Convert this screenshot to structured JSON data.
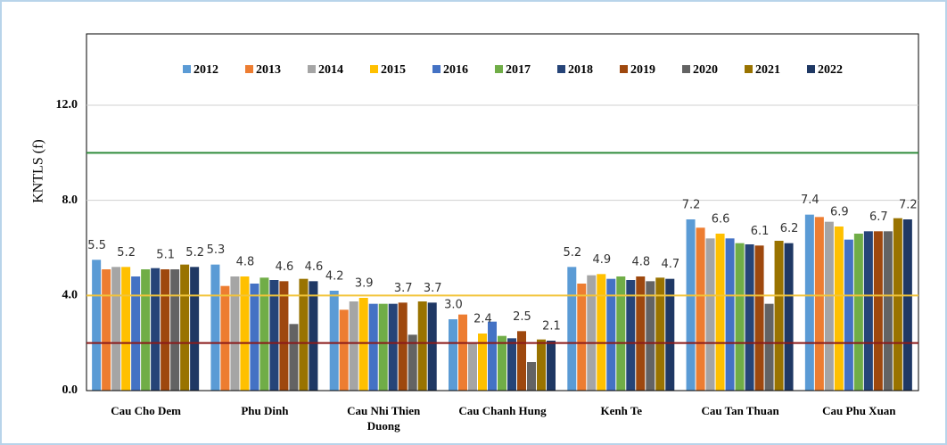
{
  "chart_data": {
    "type": "bar",
    "ylabel": "KNTLS (f)",
    "categories": [
      "Cau Cho Dem",
      "Phu Dinh",
      "Cau Nhi Thien Duong",
      "Cau Chanh Hung",
      "Kenh Te",
      "Cau Tan Thuan",
      "Cau Phu Xuan"
    ],
    "series": [
      {
        "name": "2012",
        "color": "#5b9bd5",
        "values": [
          5.5,
          5.3,
          4.2,
          3.0,
          5.2,
          7.2,
          7.4
        ],
        "value_labels": [
          "5.5",
          "5.3",
          "4.2",
          "3.0",
          "5.2",
          "7.2",
          "7.4"
        ]
      },
      {
        "name": "2013",
        "color": "#ed7d31",
        "values": [
          5.1,
          4.4,
          3.4,
          3.2,
          4.5,
          6.85,
          7.3
        ]
      },
      {
        "name": "2014",
        "color": "#a5a5a5",
        "values": [
          5.2,
          4.8,
          3.75,
          2.0,
          4.85,
          6.4,
          7.1
        ]
      },
      {
        "name": "2015",
        "color": "#ffc000",
        "values": [
          5.2,
          4.8,
          3.9,
          2.4,
          4.9,
          6.6,
          6.9
        ],
        "value_labels": [
          "5.2",
          "4.8",
          "3.9",
          "2.4",
          "4.9",
          "6.6",
          "6.9"
        ]
      },
      {
        "name": "2016",
        "color": "#4472c4",
        "values": [
          4.8,
          4.5,
          3.65,
          2.9,
          4.7,
          6.4,
          6.35
        ]
      },
      {
        "name": "2017",
        "color": "#70ad47",
        "values": [
          5.1,
          4.75,
          3.65,
          2.3,
          4.8,
          6.2,
          6.6
        ]
      },
      {
        "name": "2018",
        "color": "#264478",
        "values": [
          5.15,
          4.65,
          3.65,
          2.2,
          4.65,
          6.15,
          6.7
        ]
      },
      {
        "name": "2019",
        "color": "#9e480e",
        "values": [
          5.1,
          4.6,
          3.7,
          2.5,
          4.8,
          6.1,
          6.7
        ],
        "value_labels": [
          "5.1",
          "4.6",
          "3.7",
          "2.5",
          "4.8",
          "6.1",
          "6.7"
        ]
      },
      {
        "name": "2020",
        "color": "#636363",
        "values": [
          5.1,
          2.8,
          2.35,
          1.2,
          4.6,
          3.65,
          6.7
        ]
      },
      {
        "name": "2021",
        "color": "#997300",
        "values": [
          5.3,
          4.7,
          3.75,
          2.15,
          4.75,
          6.3,
          7.25
        ]
      },
      {
        "name": "2022",
        "color": "#1f3864",
        "values": [
          5.2,
          4.6,
          3.7,
          2.1,
          4.7,
          6.2,
          7.2
        ],
        "value_labels": [
          "5.2",
          "4.6",
          "3.7",
          "2.1",
          "4.7",
          "6.2",
          "7.2"
        ]
      }
    ],
    "ylim": [
      0,
      15
    ],
    "yticks": [
      {
        "value": 0,
        "label": "0.0"
      },
      {
        "value": 4,
        "label": "4.0"
      },
      {
        "value": 8,
        "label": "8.0"
      },
      {
        "value": 12,
        "label": "12.0"
      }
    ],
    "grid": true,
    "legend": "top",
    "reference_lines": [
      {
        "value": 10,
        "color": "#2e8b3a"
      },
      {
        "value": 4,
        "color": "#f2c43a"
      },
      {
        "value": 2,
        "color": "#8b1a1a"
      }
    ]
  }
}
